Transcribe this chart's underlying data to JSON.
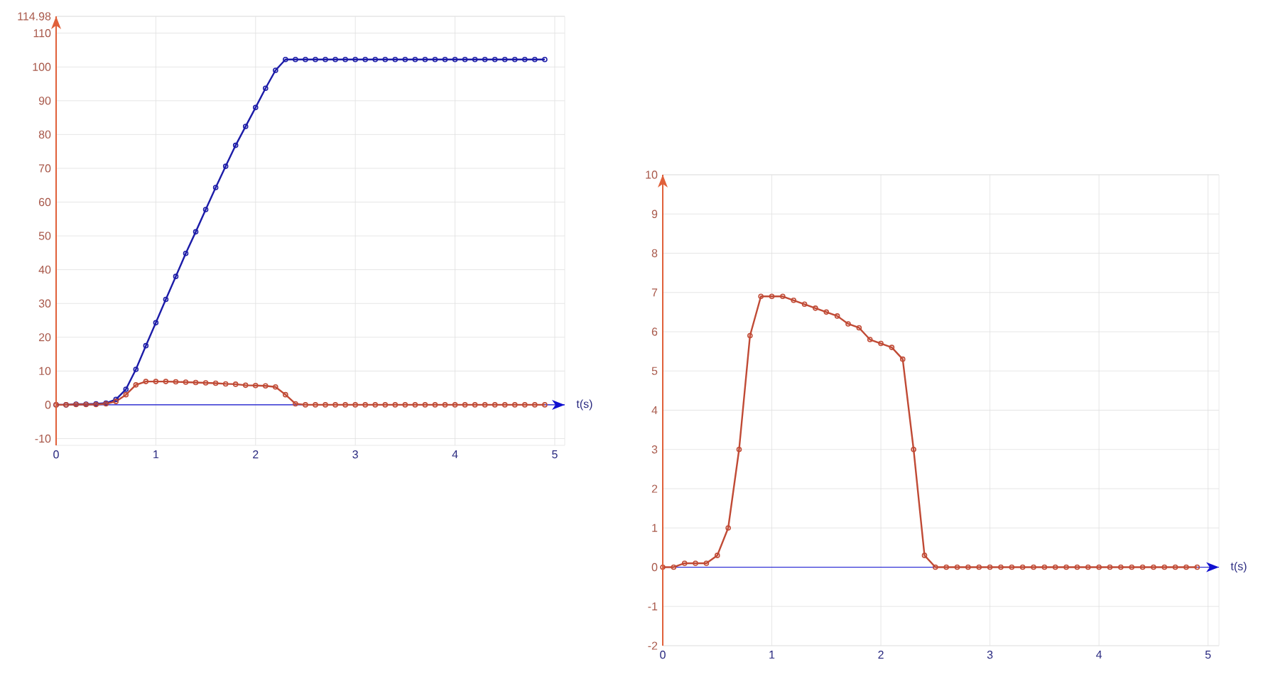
{
  "chart_data": [
    {
      "type": "line",
      "xlabel": "t(s)",
      "grid": true,
      "marker": "circle",
      "line_style": "solid",
      "x": [
        0,
        0.1,
        0.2,
        0.3,
        0.4,
        0.5,
        0.6,
        0.7,
        0.8,
        0.9,
        1,
        1.1,
        1.2,
        1.3,
        1.4,
        1.5,
        1.6,
        1.7,
        1.8,
        1.9,
        2,
        2.1,
        2.2,
        2.3,
        2.4,
        2.5,
        2.6,
        2.7,
        2.8,
        2.9,
        3,
        3.1,
        3.2,
        3.3,
        3.4,
        3.5,
        3.6,
        3.7,
        3.8,
        3.9,
        4,
        4.1,
        4.2,
        4.3,
        4.4,
        4.5,
        4.6,
        4.7,
        4.8,
        4.9
      ],
      "ref_lines": [
        {
          "axis": "y",
          "value": 0,
          "color": "#1010d0"
        }
      ],
      "xlim": [
        0,
        5.1
      ],
      "ylim": [
        -12,
        114.98
      ],
      "xticks": [
        0,
        1,
        2,
        3,
        4,
        5
      ],
      "yticks": [
        -10,
        0,
        10,
        20,
        30,
        40,
        50,
        60,
        70,
        80,
        90,
        100,
        110,
        114.98
      ],
      "series": [
        {
          "color": "#1c1ca8",
          "values": [
            0,
            0,
            0.2,
            0.2,
            0.3,
            0.5,
            1.6,
            4.6,
            10.5,
            17.5,
            24.3,
            31.2,
            38,
            44.8,
            51.2,
            57.8,
            64.3,
            70.6,
            76.8,
            82.4,
            88,
            93.7,
            99,
            102.2,
            102.2,
            102.2,
            102.2,
            102.2,
            102.2,
            102.2,
            102.2,
            102.2,
            102.2,
            102.2,
            102.2,
            102.2,
            102.2,
            102.2,
            102.2,
            102.2,
            102.2,
            102.2,
            102.2,
            102.2,
            102.2,
            102.2,
            102.2,
            102.2,
            102.2,
            102.2
          ]
        },
        {
          "color": "#c04a35",
          "values": [
            0,
            0,
            0.1,
            0.1,
            0.1,
            0.3,
            1,
            3,
            5.9,
            6.9,
            6.9,
            6.9,
            6.8,
            6.7,
            6.6,
            6.5,
            6.4,
            6.2,
            6.1,
            5.8,
            5.7,
            5.6,
            5.3,
            3,
            0.3,
            0,
            0,
            0,
            0,
            0,
            0,
            0,
            0,
            0,
            0,
            0,
            0,
            0,
            0,
            0,
            0,
            0,
            0,
            0,
            0,
            0,
            0,
            0,
            0,
            0
          ]
        }
      ]
    },
    {
      "type": "line",
      "xlabel": "t(s)",
      "grid": true,
      "marker": "circle",
      "line_style": "solid",
      "x": [
        0,
        0.1,
        0.2,
        0.3,
        0.4,
        0.5,
        0.6,
        0.7,
        0.8,
        0.9,
        1,
        1.1,
        1.2,
        1.3,
        1.4,
        1.5,
        1.6,
        1.7,
        1.8,
        1.9,
        2,
        2.1,
        2.2,
        2.3,
        2.4,
        2.5,
        2.6,
        2.7,
        2.8,
        2.9,
        3,
        3.1,
        3.2,
        3.3,
        3.4,
        3.5,
        3.6,
        3.7,
        3.8,
        3.9,
        4,
        4.1,
        4.2,
        4.3,
        4.4,
        4.5,
        4.6,
        4.7,
        4.8,
        4.9
      ],
      "ref_lines": [
        {
          "axis": "y",
          "value": 0,
          "color": "#1010d0"
        }
      ],
      "xlim": [
        0,
        5.1
      ],
      "ylim": [
        -2,
        10
      ],
      "xticks": [
        0,
        1,
        2,
        3,
        4,
        5
      ],
      "yticks": [
        -2,
        -1,
        0,
        1,
        2,
        3,
        4,
        5,
        6,
        7,
        8,
        9,
        10
      ],
      "series": [
        {
          "color": "#c04a35",
          "values": [
            0,
            0,
            0.1,
            0.1,
            0.1,
            0.3,
            1,
            3,
            5.9,
            6.9,
            6.9,
            6.9,
            6.8,
            6.7,
            6.6,
            6.5,
            6.4,
            6.2,
            6.1,
            5.8,
            5.7,
            5.6,
            5.3,
            3,
            0.3,
            0,
            0,
            0,
            0,
            0,
            0,
            0,
            0,
            0,
            0,
            0,
            0,
            0,
            0,
            0,
            0,
            0,
            0,
            0,
            0,
            0,
            0,
            0,
            0,
            0
          ]
        }
      ]
    }
  ]
}
